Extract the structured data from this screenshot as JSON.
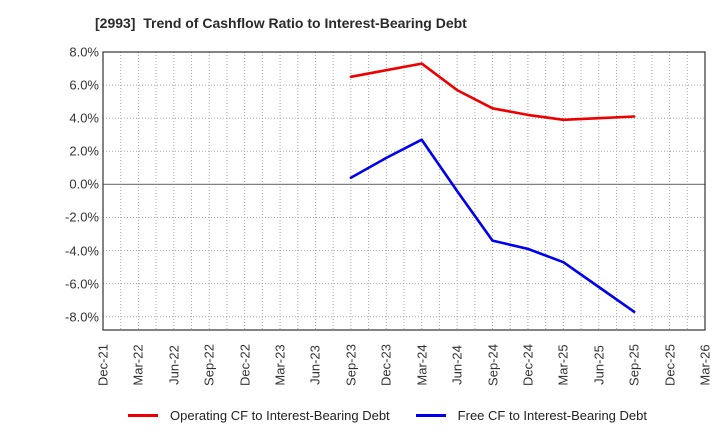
{
  "title": "[2993]  Trend of Cashflow Ratio to Interest-Bearing Debt",
  "chart_data": {
    "type": "line",
    "title": "[2993]  Trend of Cashflow Ratio to Interest-Bearing Debt",
    "categories": [
      "Dec-21",
      "Mar-22",
      "Jun-22",
      "Sep-22",
      "Dec-22",
      "Mar-23",
      "Jun-23",
      "Sep-23",
      "Dec-23",
      "Mar-24",
      "Jun-24",
      "Sep-24",
      "Dec-24",
      "Mar-25",
      "Jun-25",
      "Sep-25",
      "Dec-25",
      "Mar-26"
    ],
    "series": [
      {
        "id": "operating-cf",
        "name": "Operating CF to Interest-Bearing Debt",
        "color": "#ee0000",
        "values": [
          null,
          null,
          null,
          null,
          null,
          null,
          null,
          6.5,
          6.9,
          7.3,
          5.7,
          4.6,
          4.2,
          3.9,
          4.0,
          4.1,
          null,
          null
        ]
      },
      {
        "id": "free-cf",
        "name": "Free CF to Interest-Bearing Debt",
        "color": "#0000ee",
        "values": [
          null,
          null,
          null,
          null,
          null,
          null,
          null,
          0.4,
          1.6,
          2.7,
          -0.4,
          -3.4,
          -3.9,
          -4.7,
          -6.2,
          -7.7,
          null,
          null
        ]
      }
    ],
    "xlabel": "",
    "ylabel": "",
    "unit": "%",
    "yticks": [
      {
        "value": 8,
        "label": "8.0%"
      },
      {
        "value": 6,
        "label": "6.0%"
      },
      {
        "value": 4,
        "label": "4.0%"
      },
      {
        "value": 2,
        "label": "2.0%"
      },
      {
        "value": 0,
        "label": "0.0%"
      },
      {
        "value": -2,
        "label": "-2.0%"
      },
      {
        "value": -4,
        "label": "-4.0%"
      },
      {
        "value": -6,
        "label": "-6.0%"
      },
      {
        "value": -8,
        "label": "-8.0%"
      }
    ],
    "ylim": [
      -8.8,
      8.0
    ],
    "grid": true,
    "minor_x_grid": true,
    "legend_position": "bottom",
    "colors": {
      "grid": "#a8a8a8",
      "zero_line": "#808080",
      "border": "#333333",
      "title_text": "#2a2a2a",
      "tick_text": "#333333"
    }
  }
}
